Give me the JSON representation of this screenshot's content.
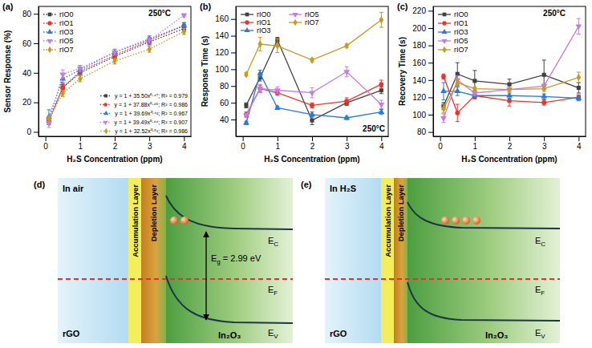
{
  "chart_data": [
    {
      "type": "line",
      "panel_label": "(a)",
      "annotation": "250°C",
      "x_label": "H₂S Concentration (ppm)",
      "y_label": "Sensor Response (%)",
      "x": [
        0.1,
        0.5,
        1,
        2,
        3,
        4
      ],
      "xlim": [
        -0.2,
        4.2
      ],
      "xticks": [
        0,
        1,
        2,
        3,
        4
      ],
      "ylim": [
        -3,
        85
      ],
      "yticks": [
        0,
        20,
        40,
        60,
        80
      ],
      "legend": "top-left",
      "line_style": "dotted",
      "series": [
        {
          "name": "rIO0",
          "color": "#404040",
          "marker": "square",
          "values": [
            8,
            30,
            40,
            51,
            61,
            70
          ],
          "errors": [
            2,
            2,
            2,
            1.5,
            2,
            2
          ]
        },
        {
          "name": "rIO1",
          "color": "#e8352e",
          "marker": "circle",
          "values": [
            7,
            30,
            41,
            52,
            62,
            72
          ],
          "errors": [
            2,
            3,
            2,
            2,
            2,
            2
          ]
        },
        {
          "name": "rIO3",
          "color": "#2a7bd6",
          "marker": "triangle-up",
          "values": [
            10,
            36,
            42,
            54,
            63,
            72
          ],
          "errors": [
            5,
            3,
            3,
            2,
            2,
            2
          ]
        },
        {
          "name": "rIO5",
          "color": "#c57be3",
          "marker": "triangle-down",
          "values": [
            6,
            39,
            43,
            54,
            62,
            79
          ],
          "errors": [
            3,
            3,
            2,
            2,
            2,
            1
          ]
        },
        {
          "name": "rIO7",
          "color": "#c8991f",
          "marker": "diamond",
          "values": [
            9,
            26,
            36,
            48,
            56,
            68
          ],
          "errors": [
            2,
            2,
            2,
            2,
            2,
            2
          ]
        }
      ],
      "fit_equations": [
        "y = 1 + 35.50x⁰·⁴⁷; R² = 0.979",
        "y = 1 + 37.88x⁰·⁴⁵; R² = 0.986",
        "y = 1 + 39.69x⁰·⁴²; R² = 0.967",
        "y = 1 + 39.49x⁰·⁴⁴; R² = 0.907",
        "y = 1 + 32.52x⁰·⁵¹; R² = 0.986"
      ]
    },
    {
      "type": "line",
      "panel_label": "(b)",
      "annotation": "250°C",
      "x_label": "H₂S Concentration (ppm)",
      "y_label": "Response Time (s)",
      "x": [
        0.1,
        0.5,
        1,
        2,
        3,
        4
      ],
      "xlim": [
        -0.2,
        4.2
      ],
      "xticks": [
        0,
        1,
        2,
        3,
        4
      ],
      "ylim": [
        20,
        175
      ],
      "yticks": [
        40,
        60,
        80,
        100,
        120,
        140,
        160
      ],
      "legend": "top",
      "line_style": "solid",
      "series": [
        {
          "name": "rIO0",
          "color": "#404040",
          "marker": "square",
          "values": [
            57,
            90,
            135,
            39,
            60,
            75
          ],
          "errors": [
            3,
            4,
            3,
            5,
            3,
            4
          ]
        },
        {
          "name": "rIO1",
          "color": "#e8352e",
          "marker": "circle",
          "values": [
            46,
            77,
            72,
            57,
            62,
            82
          ],
          "errors": [
            3,
            4,
            3,
            3,
            4,
            5
          ]
        },
        {
          "name": "rIO3",
          "color": "#2a7bd6",
          "marker": "triangle-up",
          "values": [
            36,
            95,
            54,
            46,
            42,
            49
          ],
          "errors": [
            2,
            4,
            2,
            3,
            2,
            3
          ]
        },
        {
          "name": "rIO5",
          "color": "#c57be3",
          "marker": "triangle-down",
          "values": [
            45,
            77,
            75,
            72,
            97,
            58
          ],
          "errors": [
            2,
            5,
            4,
            6,
            6,
            5
          ]
        },
        {
          "name": "rIO7",
          "color": "#c8991f",
          "marker": "diamond",
          "values": [
            94,
            130,
            128,
            111,
            128,
            159
          ],
          "errors": [
            2,
            8,
            8,
            2,
            2,
            9
          ]
        }
      ]
    },
    {
      "type": "line",
      "panel_label": "(c)",
      "annotation": "250°C",
      "x_label": "H₂S Concentration (ppm)",
      "y_label": "Recovery Time (s)",
      "x": [
        0.1,
        0.5,
        1,
        2,
        3,
        4
      ],
      "xlim": [
        -0.2,
        4.2
      ],
      "xticks": [
        0,
        1,
        2,
        3,
        4
      ],
      "ylim": [
        75,
        225
      ],
      "yticks": [
        80,
        100,
        120,
        140,
        160,
        180,
        200,
        220
      ],
      "legend": "top-left",
      "line_style": "solid",
      "series": [
        {
          "name": "rIO0",
          "color": "#404040",
          "marker": "square",
          "values": [
            110,
            147,
            139,
            135,
            146,
            131
          ],
          "errors": [
            4,
            13,
            12,
            6,
            17,
            6
          ]
        },
        {
          "name": "rIO1",
          "color": "#e8352e",
          "marker": "circle",
          "values": [
            144,
            102,
            122,
            116,
            114,
            120
          ],
          "errors": [
            3,
            10,
            3,
            6,
            3,
            3
          ]
        },
        {
          "name": "rIO3",
          "color": "#2a7bd6",
          "marker": "triangle-up",
          "values": [
            127,
            127,
            122,
            122,
            121,
            119
          ],
          "errors": [
            10,
            5,
            4,
            3,
            3,
            3
          ]
        },
        {
          "name": "rIO5",
          "color": "#c57be3",
          "marker": "triangle-down",
          "values": [
            96,
            140,
            125,
            129,
            133,
            202
          ],
          "errors": [
            5,
            5,
            3,
            2,
            3,
            9
          ]
        },
        {
          "name": "rIO7",
          "color": "#c8991f",
          "marker": "diamond",
          "values": [
            107,
            137,
            130,
            129,
            130,
            143
          ],
          "errors": [
            5,
            4,
            2,
            2,
            3,
            6
          ]
        }
      ]
    }
  ],
  "diagrams": [
    {
      "panel_label": "(d)",
      "ambient": "In air",
      "left": "rGO",
      "right": "In₂O₃",
      "accumulation": "Accumulation Layer",
      "depletion": "Depletion Layer",
      "conduction": {
        "main": "E",
        "sub": "C"
      },
      "fermi": {
        "main": "E",
        "sub": "F"
      },
      "valence": {
        "main": "E",
        "sub": "V"
      },
      "gap": {
        "main": "E",
        "sub": "g",
        "rest": " = 2.99 eV"
      },
      "electrons": 2
    },
    {
      "panel_label": "(e)",
      "ambient": "In H₂S",
      "left": "rGO",
      "right": "In₂O₃",
      "accumulation": "Accumulation Layer",
      "depletion": "Depletion Layer",
      "conduction": {
        "main": "E",
        "sub": "C"
      },
      "fermi": {
        "main": "E",
        "sub": "F"
      },
      "valence": {
        "main": "E",
        "sub": "V"
      },
      "electrons": 4
    }
  ]
}
